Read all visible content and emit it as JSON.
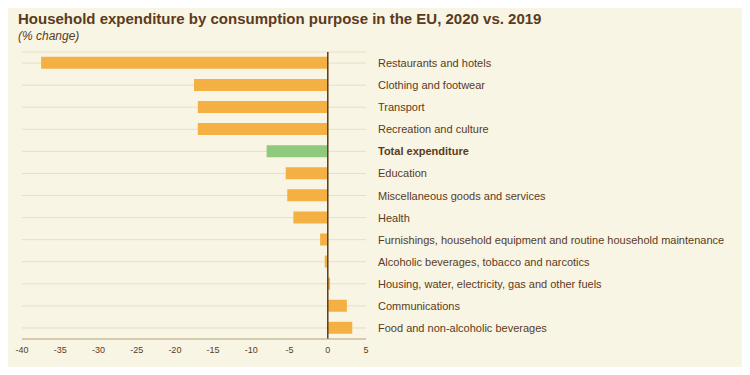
{
  "chart_data": {
    "type": "bar",
    "orientation": "horizontal",
    "title": "Household expenditure by consumption purpose in the EU, 2020 vs. 2019",
    "subtitle": "(% change)",
    "categories": [
      "Restaurants and hotels",
      "Clothing and footwear",
      "Transport",
      "Recreation and culture",
      "Total expenditure",
      "Education",
      "Miscellaneous goods and services",
      "Health",
      "Furnishings, household equipment and routine household maintenance",
      "Alcoholic beverages, tobacco and narcotics",
      "Housing, water, electricity, gas and other fuels",
      "Communications",
      "Food and non-alcoholic beverages"
    ],
    "values": [
      -37.5,
      -17.5,
      -17,
      -17,
      -8,
      -5.5,
      -5.3,
      -4.5,
      -1,
      -0.4,
      0.3,
      2.5,
      3.2
    ],
    "color": "#f5b043",
    "colors": [
      "#f5b043",
      "#f5b043",
      "#f5b043",
      "#f5b043",
      "#8fc97c",
      "#f5b043",
      "#f5b043",
      "#f5b043",
      "#f5b043",
      "#f5b043",
      "#f5b043",
      "#f5b043",
      "#f5b043"
    ],
    "xlim": [
      -40,
      5
    ],
    "xticks": [
      -40,
      -35,
      -30,
      -25,
      -20,
      -15,
      -10,
      -5,
      0,
      5
    ],
    "grid": true
  }
}
